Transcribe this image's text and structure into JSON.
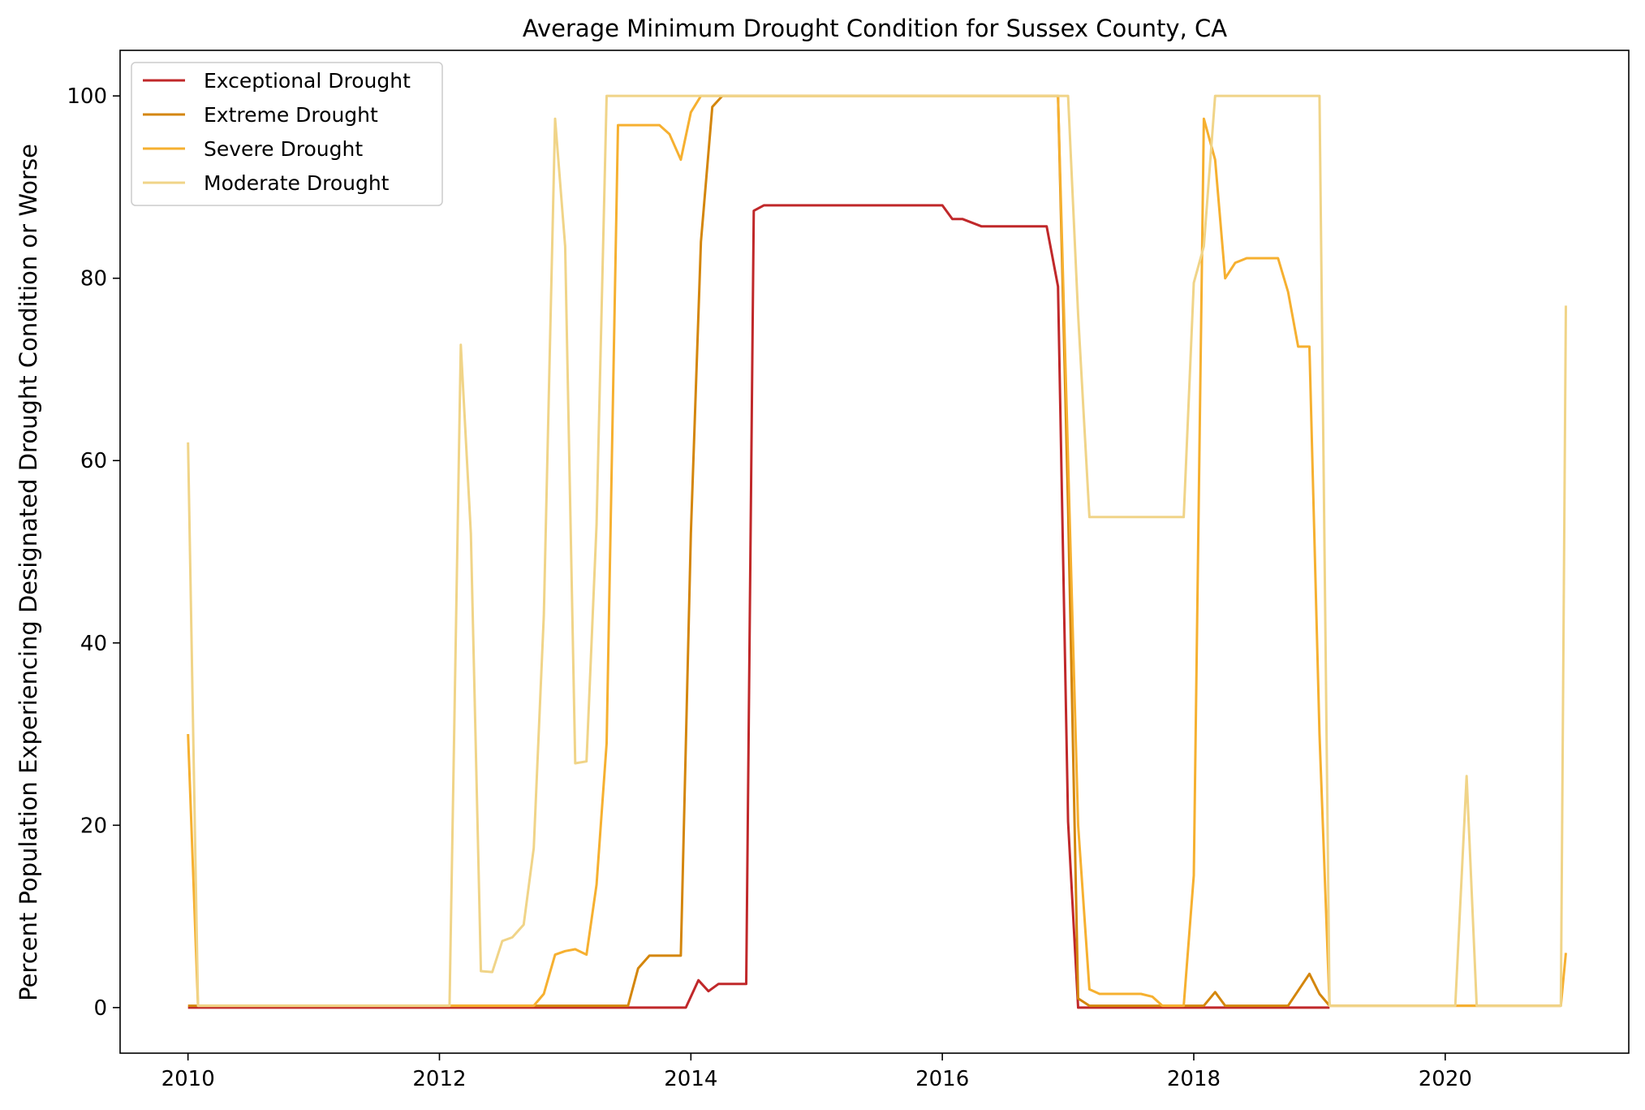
{
  "chart_data": {
    "type": "line",
    "title": "Average Minimum Drought Condition for Sussex County, CA",
    "xlabel": "",
    "ylabel": "Percent Population Experiencing Designated Drought Condition or Worse",
    "xlim": [
      2009.46,
      2021.46
    ],
    "ylim": [
      -5,
      105
    ],
    "xticks": [
      2010,
      2012,
      2014,
      2016,
      2018,
      2020
    ],
    "xtick_labels": [
      "2010",
      "2012",
      "2014",
      "2016",
      "2018",
      "2020"
    ],
    "yticks": [
      0,
      20,
      40,
      60,
      80,
      100
    ],
    "ytick_labels": [
      "0",
      "20",
      "40",
      "60",
      "80",
      "100"
    ],
    "legend_position": "upper-left",
    "series": [
      {
        "name": "Exceptional Drought",
        "color": "#c0282a",
        "points": [
          [
            2010.0,
            0
          ],
          [
            2013.96,
            0
          ],
          [
            2014.06,
            3
          ],
          [
            2014.14,
            1.8
          ],
          [
            2014.22,
            2.6
          ],
          [
            2014.44,
            2.6
          ],
          [
            2014.5,
            87.4
          ],
          [
            2014.58,
            88
          ],
          [
            2016.0,
            88
          ],
          [
            2016.08,
            86.5
          ],
          [
            2016.16,
            86.5
          ],
          [
            2016.31,
            85.7
          ],
          [
            2016.83,
            85.7
          ],
          [
            2016.92,
            79.1
          ],
          [
            2017.0,
            20.4
          ],
          [
            2017.08,
            0
          ],
          [
            2019.08,
            0
          ]
        ]
      },
      {
        "name": "Extreme Drought",
        "color": "#d4860c",
        "points": [
          [
            2010.0,
            0.2
          ],
          [
            2013.5,
            0.2
          ],
          [
            2013.58,
            4.3
          ],
          [
            2013.67,
            5.7
          ],
          [
            2013.92,
            5.7
          ],
          [
            2014.0,
            52
          ],
          [
            2014.08,
            84
          ],
          [
            2014.17,
            98.8
          ],
          [
            2014.25,
            100
          ],
          [
            2016.92,
            100
          ],
          [
            2017.0,
            55
          ],
          [
            2017.08,
            1
          ],
          [
            2017.17,
            0.2
          ],
          [
            2018.08,
            0.2
          ],
          [
            2018.17,
            1.7
          ],
          [
            2018.25,
            0.2
          ],
          [
            2018.75,
            0.2
          ],
          [
            2018.92,
            3.7
          ],
          [
            2019.0,
            1.5
          ],
          [
            2019.08,
            0.2
          ],
          [
            2020.92,
            0.2
          ]
        ]
      },
      {
        "name": "Severe Drought",
        "color": "#f6b030",
        "points": [
          [
            2010.0,
            30
          ],
          [
            2010.08,
            0.2
          ],
          [
            2012.75,
            0.2
          ],
          [
            2012.83,
            1.5
          ],
          [
            2012.92,
            5.8
          ],
          [
            2013.0,
            6.2
          ],
          [
            2013.08,
            6.4
          ],
          [
            2013.17,
            5.8
          ],
          [
            2013.25,
            13.5
          ],
          [
            2013.33,
            29
          ],
          [
            2013.42,
            96.8
          ],
          [
            2013.75,
            96.8
          ],
          [
            2013.83,
            95.8
          ],
          [
            2013.92,
            93
          ],
          [
            2014.0,
            98.2
          ],
          [
            2014.08,
            100
          ],
          [
            2016.83,
            100
          ],
          [
            2016.92,
            100
          ],
          [
            2017.0,
            60
          ],
          [
            2017.08,
            20
          ],
          [
            2017.17,
            2
          ],
          [
            2017.25,
            1.5
          ],
          [
            2017.58,
            1.5
          ],
          [
            2017.67,
            1.2
          ],
          [
            2017.75,
            0.2
          ],
          [
            2017.92,
            0.2
          ],
          [
            2018.0,
            14.5
          ],
          [
            2018.08,
            97.5
          ],
          [
            2018.17,
            93
          ],
          [
            2018.25,
            80
          ],
          [
            2018.33,
            81.7
          ],
          [
            2018.42,
            82.2
          ],
          [
            2018.67,
            82.2
          ],
          [
            2018.75,
            78.5
          ],
          [
            2018.83,
            72.5
          ],
          [
            2018.92,
            72.5
          ],
          [
            2019.0,
            30
          ],
          [
            2019.08,
            0.2
          ],
          [
            2020.92,
            0.2
          ],
          [
            2020.96,
            6
          ]
        ]
      },
      {
        "name": "Moderate Drought",
        "color": "#f0d488",
        "points": [
          [
            2010.0,
            62
          ],
          [
            2010.08,
            0.2
          ],
          [
            2012.08,
            0.2
          ],
          [
            2012.17,
            72.7
          ],
          [
            2012.25,
            52
          ],
          [
            2012.33,
            4
          ],
          [
            2012.42,
            3.9
          ],
          [
            2012.5,
            7.3
          ],
          [
            2012.58,
            7.7
          ],
          [
            2012.67,
            9.1
          ],
          [
            2012.75,
            17.5
          ],
          [
            2012.83,
            43
          ],
          [
            2012.92,
            97.5
          ],
          [
            2013.0,
            83.5
          ],
          [
            2013.08,
            26.8
          ],
          [
            2013.17,
            27
          ],
          [
            2013.25,
            53
          ],
          [
            2013.33,
            100
          ],
          [
            2016.83,
            100
          ],
          [
            2017.0,
            100
          ],
          [
            2017.08,
            76
          ],
          [
            2017.17,
            53.8
          ],
          [
            2017.92,
            53.8
          ],
          [
            2018.0,
            79.5
          ],
          [
            2018.08,
            83.5
          ],
          [
            2018.17,
            100
          ],
          [
            2019.0,
            100
          ],
          [
            2019.08,
            0.2
          ],
          [
            2020.08,
            0.2
          ],
          [
            2020.17,
            25.4
          ],
          [
            2020.25,
            0.2
          ],
          [
            2020.92,
            0.2
          ],
          [
            2020.96,
            77
          ]
        ]
      }
    ]
  }
}
